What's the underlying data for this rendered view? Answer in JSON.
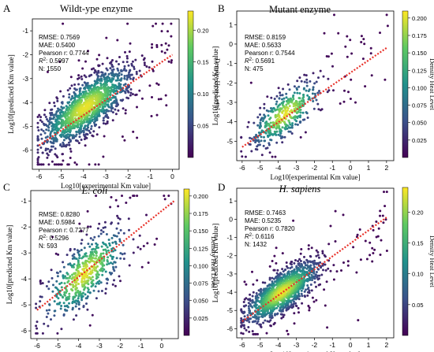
{
  "figure": {
    "common": {
      "xlabel": "Log10[experimental Km value]",
      "ylabel": "Log10[predicted Km value]",
      "colorbar_label": "Density Heat Level",
      "fit_line_color": "#e8322a",
      "colormap": [
        "#440154",
        "#3b528b",
        "#21918c",
        "#5ec962",
        "#fde725"
      ]
    }
  },
  "chart_data": [
    {
      "type": "scatter",
      "panel_letter": "A",
      "title": "Wildt-ype enzyme",
      "title_italic": false,
      "xlim": [
        -6.3,
        0.3
      ],
      "ylim": [
        -6.8,
        -0.5
      ],
      "xticks": [
        -6,
        -5,
        -4,
        -3,
        -2,
        -1,
        0
      ],
      "yticks": [
        -6,
        -5,
        -4,
        -3,
        -2,
        -1
      ],
      "colorbar_ticks": [
        "0.05",
        "0.10",
        "0.15",
        "0.20"
      ],
      "colorbar_max": 0.23,
      "stats": [
        "RMSE: 0.7569",
        "MAE: 0.5400",
        "Pearson r: 0.7744",
        "R²: 0.5997",
        "N: 1550"
      ],
      "fit_line": {
        "x": [
          -6,
          0
        ],
        "y": [
          -5.8,
          -2.0
        ]
      },
      "n_points": 1550,
      "cloud": {
        "center": [
          -3.9,
          -4.2
        ],
        "spread": 0.95,
        "noise": 0.55
      }
    },
    {
      "type": "scatter",
      "panel_letter": "B",
      "title": "Mutant enzyme",
      "title_italic": false,
      "xlim": [
        -6.3,
        2.4
      ],
      "ylim": [
        -6.0,
        1.7
      ],
      "xticks": [
        -6,
        -5,
        -4,
        -3,
        -2,
        -1,
        0,
        1,
        2
      ],
      "yticks": [
        -5,
        -4,
        -3,
        -2,
        -1,
        0,
        1
      ],
      "colorbar_ticks": [
        "0.025",
        "0.050",
        "0.075",
        "0.100",
        "0.125",
        "0.150",
        "0.175",
        "0.200"
      ],
      "colorbar_max": 0.21,
      "stats": [
        "RMSE: 0.8159",
        "MAE: 0.5633",
        "Pearson r: 0.7544",
        "R²: 0.5691",
        "N: 475"
      ],
      "fit_line": {
        "x": [
          -6,
          2
        ],
        "y": [
          -5.3,
          -0.2
        ]
      },
      "n_points": 475,
      "cloud": {
        "center": [
          -3.6,
          -3.6
        ],
        "spread": 0.9,
        "noise": 0.6
      }
    },
    {
      "type": "scatter",
      "panel_letter": "C",
      "title": "E. coli",
      "title_italic": true,
      "xlim": [
        -6.3,
        0.8
      ],
      "ylim": [
        -6.3,
        -0.6
      ],
      "xticks": [
        -6,
        -5,
        -4,
        -3,
        -2,
        -1,
        0
      ],
      "yticks": [
        -6,
        -5,
        -4,
        -3,
        -2,
        -1
      ],
      "colorbar_ticks": [
        "0.025",
        "0.050",
        "0.075",
        "0.100",
        "0.125",
        "0.150",
        "0.175",
        "0.200"
      ],
      "colorbar_max": 0.21,
      "stats": [
        "RMSE: 0.8280",
        "MAE: 0.5984",
        "Pearson r: 0.7277",
        "R²: 0.5296",
        "N: 593"
      ],
      "fit_line": {
        "x": [
          -6,
          0.6
        ],
        "y": [
          -5.2,
          -1.0
        ]
      },
      "n_points": 593,
      "cloud": {
        "center": [
          -3.7,
          -3.8
        ],
        "spread": 0.95,
        "noise": 0.62
      }
    },
    {
      "type": "scatter",
      "panel_letter": "D",
      "title": "H. sapiens",
      "title_italic": true,
      "xlim": [
        -6.3,
        2.4
      ],
      "ylim": [
        -6.5,
        1.7
      ],
      "xticks": [
        -6,
        -5,
        -4,
        -3,
        -2,
        -1,
        0,
        1,
        2
      ],
      "yticks": [
        -6,
        -5,
        -4,
        -3,
        -2,
        -1,
        0,
        1
      ],
      "colorbar_ticks": [
        "0.05",
        "0.10",
        "0.15",
        "0.20"
      ],
      "colorbar_max": 0.24,
      "stats": [
        "RMSE: 0.7463",
        "MAE: 0.5235",
        "Pearson r: 0.7820",
        "R²: 0.6116",
        "N: 1432"
      ],
      "fit_line": {
        "x": [
          -6,
          2
        ],
        "y": [
          -5.6,
          0.1
        ]
      },
      "n_points": 1432,
      "cloud": {
        "center": [
          -3.8,
          -4.0
        ],
        "spread": 0.95,
        "noise": 0.55
      }
    }
  ]
}
